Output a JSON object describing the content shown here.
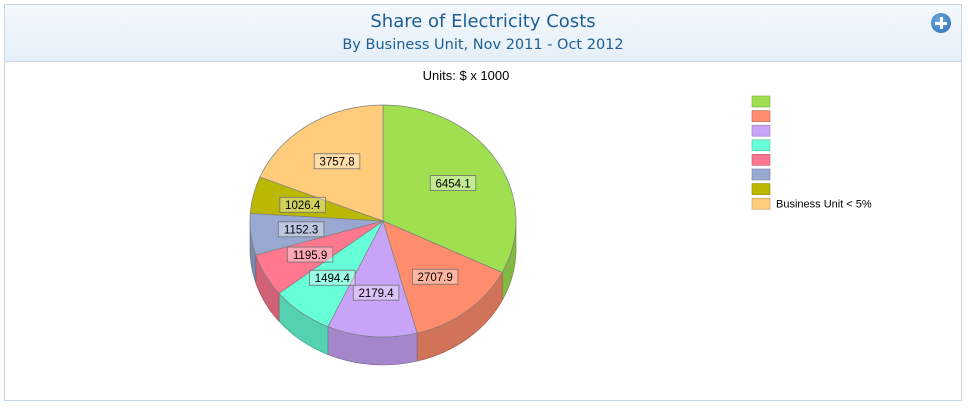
{
  "header": {
    "title": "Share of Electricity Costs",
    "subtitle": "By Business Unit, Nov 2011 - Oct 2012",
    "expand_icon": "plus-circle-icon"
  },
  "chart_data": {
    "type": "pie",
    "style": "3d",
    "units": "Units: $ x 1000",
    "legend_position": "right",
    "slices": [
      {
        "value": 6454.1,
        "name": "",
        "color": "#a0e050"
      },
      {
        "value": 2707.9,
        "name": "",
        "color": "#ff8c6c"
      },
      {
        "value": 2179.4,
        "name": "",
        "color": "#c8a4f8"
      },
      {
        "value": 1494.4,
        "name": "",
        "color": "#66ffd8"
      },
      {
        "value": 1195.9,
        "name": "",
        "color": "#ff7890"
      },
      {
        "value": 1152.3,
        "name": "",
        "color": "#98a8d0"
      },
      {
        "value": 1026.4,
        "name": "",
        "color": "#bab800"
      },
      {
        "value": 3757.8,
        "name": "Business Unit < 5%",
        "color": "#ffcc7c"
      }
    ]
  }
}
